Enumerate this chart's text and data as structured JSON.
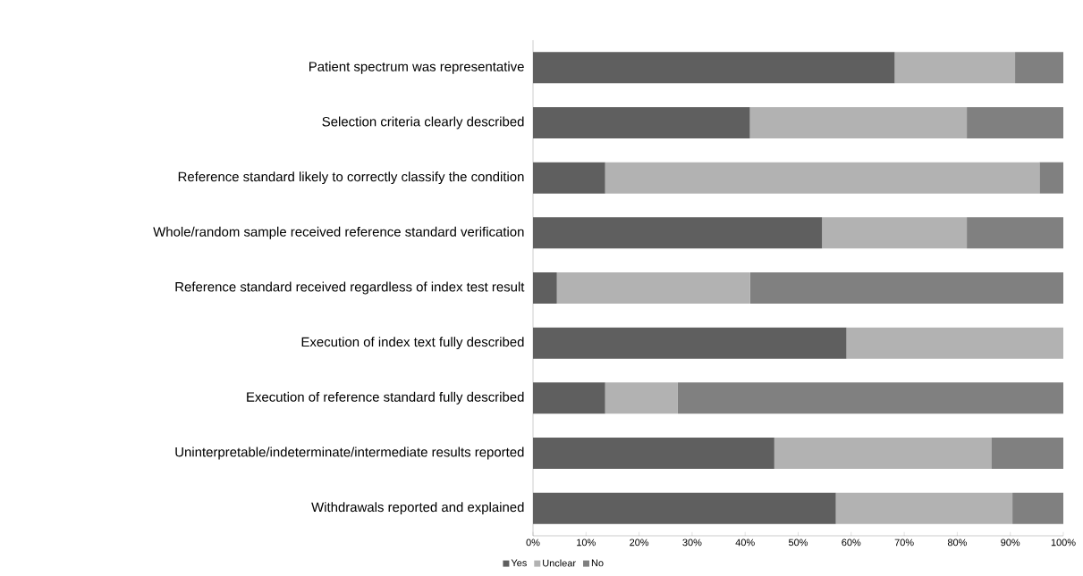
{
  "chart_data": {
    "type": "bar",
    "orientation": "horizontal",
    "stacked": true,
    "categories": [
      "Patient spectrum was representative",
      "Selection criteria clearly described",
      "Reference standard likely to correctly classify the condition",
      "Whole/random sample received reference standard verification",
      "Reference standard received regardless of index test result",
      "Execution of index text fully described",
      "Execution of reference standard fully described",
      "Uninterpretable/indeterminate/intermediate results reported",
      "Withdrawals reported and explained"
    ],
    "series": [
      {
        "name": "Yes",
        "color": "#5f5f5f",
        "values": [
          68.2,
          40.9,
          13.6,
          54.5,
          4.5,
          59.1,
          13.6,
          45.5,
          57.1
        ]
      },
      {
        "name": "Unclear",
        "color": "#b2b2b2",
        "values": [
          22.7,
          40.9,
          81.9,
          27.3,
          36.4,
          40.9,
          13.7,
          40.9,
          33.3
        ]
      },
      {
        "name": "No",
        "color": "#808080",
        "values": [
          9.1,
          18.2,
          4.5,
          18.2,
          59.1,
          0,
          72.7,
          13.6,
          9.6
        ]
      }
    ],
    "xlim": [
      0,
      100
    ],
    "xticks": [
      {
        "value": 0,
        "label": "0%"
      },
      {
        "value": 10,
        "label": "10%"
      },
      {
        "value": 20,
        "label": "20%"
      },
      {
        "value": 30,
        "label": "30%"
      },
      {
        "value": 40,
        "label": "40%"
      },
      {
        "value": 50,
        "label": "50%"
      },
      {
        "value": 60,
        "label": "60%"
      },
      {
        "value": 70,
        "label": "70%"
      },
      {
        "value": 80,
        "label": "80%"
      },
      {
        "value": 90,
        "label": "90%"
      },
      {
        "value": 100,
        "label": "100%"
      }
    ],
    "legend": "bottom"
  }
}
